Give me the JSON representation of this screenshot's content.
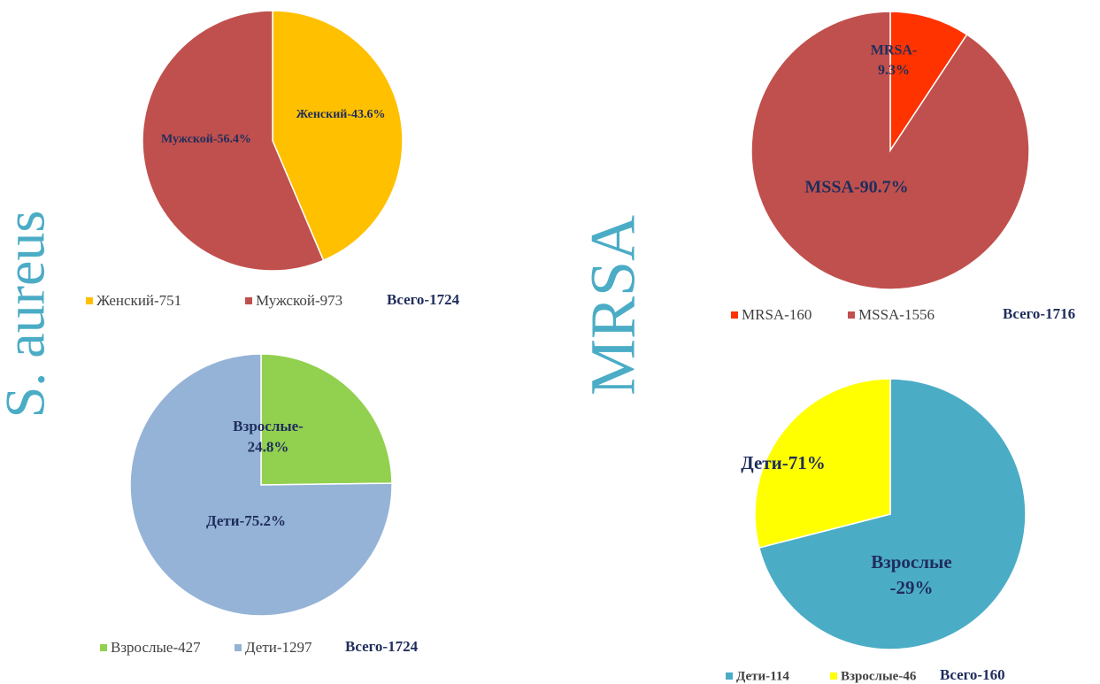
{
  "labels": [
    "S. aureus",
    "MRSA"
  ],
  "chart_data": [
    {
      "type": "pie",
      "categories": [
        "Женский-751",
        "Мужской-973"
      ],
      "values": [
        43.6,
        56.4
      ],
      "value_labels": [
        [
          "Женский-43.6%"
        ],
        [
          "Мужской-56.4%"
        ]
      ],
      "colors": [
        "#ffc000",
        "#c0504d"
      ],
      "total": "Всего-1724"
    },
    {
      "type": "pie",
      "categories": [
        "Взрослые-427",
        "Дети-1297"
      ],
      "values": [
        24.8,
        75.2
      ],
      "value_labels": [
        [
          "Взрослые-",
          "24.8%"
        ],
        [
          "Дети-75.2%"
        ]
      ],
      "colors": [
        "#92d050",
        "#95b3d7"
      ],
      "total": "Всего-1724"
    },
    {
      "type": "pie",
      "categories": [
        "MRSA-160",
        "MSSA-1556"
      ],
      "values": [
        9.3,
        90.7
      ],
      "value_labels": [
        [
          "MRSA-",
          "9.3%"
        ],
        [
          "MSSA-90.7%"
        ]
      ],
      "colors": [
        "#ff3300",
        "#c0504d"
      ],
      "total": "Всего-1716"
    },
    {
      "type": "pie",
      "categories": [
        "Дети-114",
        "Взрослые-46"
      ],
      "values": [
        71,
        29
      ],
      "value_labels": [
        [
          "Дети-71%"
        ],
        [
          "Взрослые",
          "-29%"
        ]
      ],
      "colors": [
        "#4bacc6",
        "#ffff00"
      ],
      "total": "Всего-160"
    }
  ]
}
